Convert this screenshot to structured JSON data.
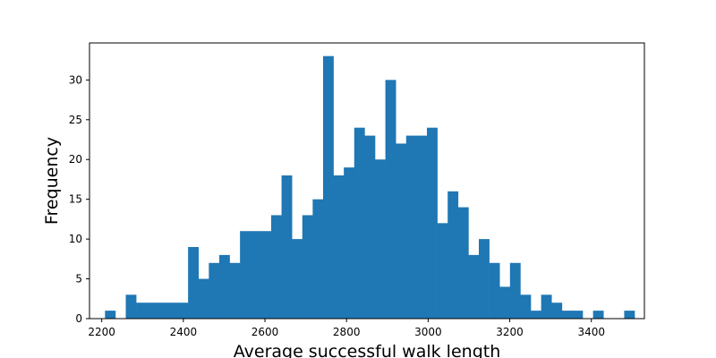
{
  "chart_data": {
    "type": "bar",
    "xlabel": "Average successful walk length",
    "ylabel": "Frequency",
    "xlim": [
      2170,
      3530
    ],
    "ylim": [
      0,
      34.65
    ],
    "x_ticks": [
      2200,
      2400,
      2600,
      2800,
      3000,
      3200,
      3400
    ],
    "y_ticks": [
      0,
      5,
      10,
      15,
      20,
      25,
      30
    ],
    "bar_color": "#1f77b4",
    "bin_start": 2208,
    "bin_width": 25.45,
    "counts": [
      1,
      0,
      3,
      2,
      2,
      2,
      2,
      2,
      9,
      5,
      7,
      8,
      7,
      11,
      11,
      11,
      13,
      18,
      10,
      13,
      15,
      33,
      18,
      19,
      24,
      23,
      20,
      30,
      22,
      23,
      23,
      24,
      12,
      16,
      14,
      8,
      10,
      7,
      4,
      7,
      3,
      1,
      3,
      2,
      1,
      1,
      0,
      1,
      0,
      0,
      1
    ],
    "grid": false,
    "legend": "none"
  }
}
